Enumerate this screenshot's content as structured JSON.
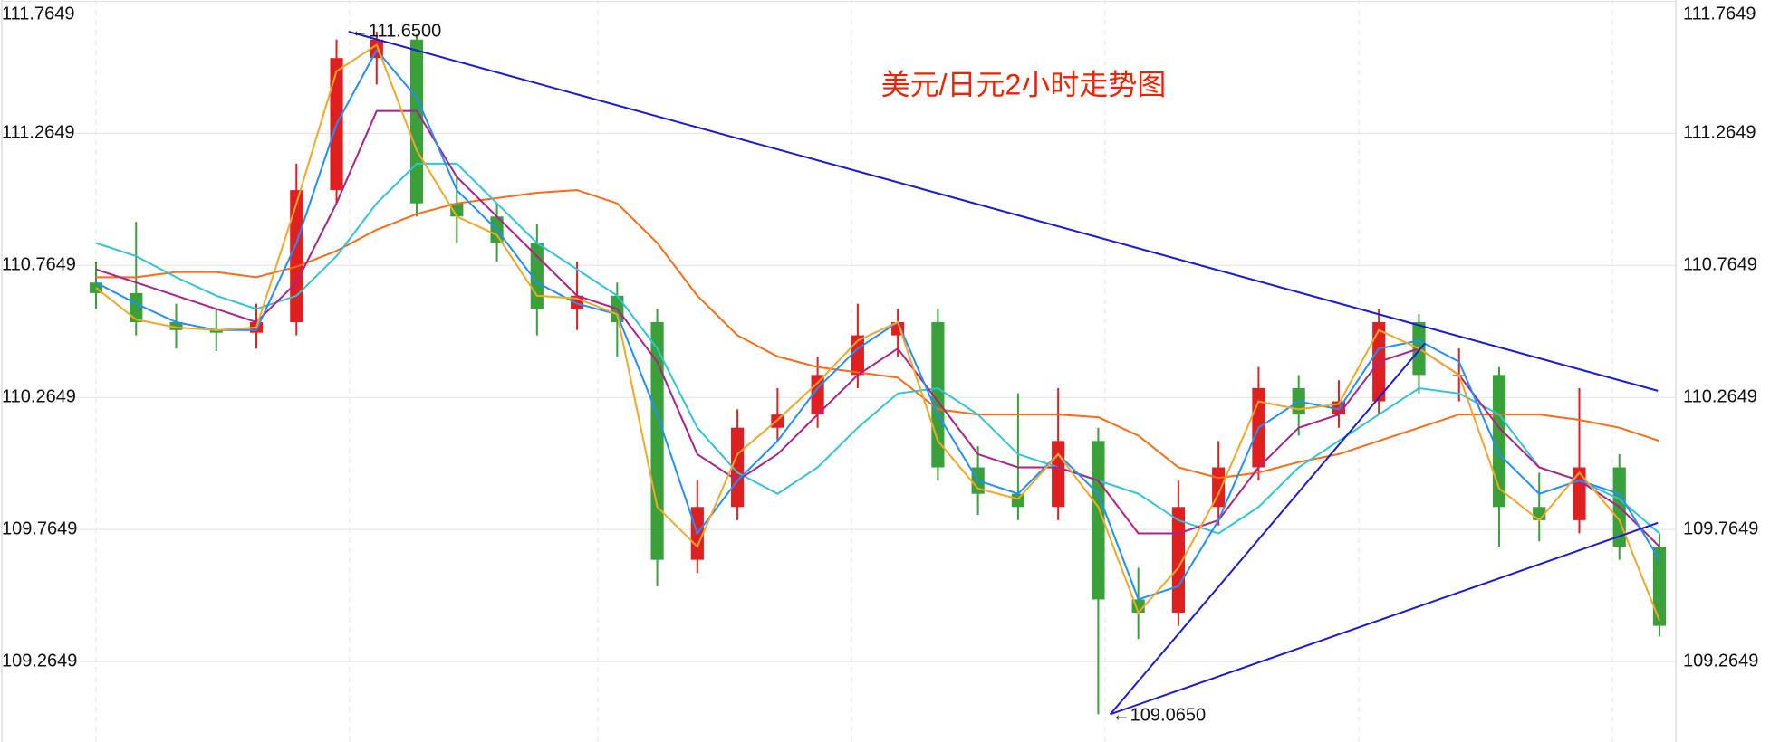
{
  "chart_data": {
    "type": "candlestick",
    "title": "美元/日元2小时走势图",
    "title_color": "#ee2200",
    "ylim": [
      108.96,
      111.77
    ],
    "yticks": [
      109.2649,
      109.7649,
      110.2649,
      110.7649,
      111.2649,
      111.7649
    ],
    "grid": true,
    "up_color": "#e02020",
    "down_color": "#3aa03a",
    "open": [
      110.7,
      110.66,
      110.55,
      110.52,
      110.51,
      110.55,
      111.05,
      111.55,
      111.62,
      111.0,
      110.95,
      110.85,
      110.6,
      110.65,
      110.55,
      109.65,
      109.85,
      110.15,
      110.2,
      110.35,
      110.5,
      110.55,
      110.0,
      109.9,
      109.85,
      110.1,
      109.5,
      109.45,
      109.85,
      110.0,
      110.3,
      110.2,
      110.25,
      110.55,
      110.35,
      110.35,
      109.85,
      109.8,
      110.0,
      109.7
    ],
    "high": [
      110.78,
      110.93,
      110.62,
      110.6,
      110.62,
      111.15,
      111.62,
      111.65,
      111.64,
      111.1,
      111.0,
      110.92,
      110.78,
      110.7,
      110.6,
      109.95,
      110.22,
      110.3,
      110.42,
      110.62,
      110.6,
      110.6,
      110.08,
      110.28,
      110.3,
      110.15,
      109.62,
      109.95,
      110.1,
      110.38,
      110.35,
      110.33,
      110.6,
      110.58,
      110.45,
      110.38,
      109.98,
      110.3,
      110.05,
      109.75
    ],
    "low": [
      110.6,
      110.5,
      110.45,
      110.44,
      110.45,
      110.5,
      111.0,
      111.45,
      110.95,
      110.85,
      110.78,
      110.5,
      110.52,
      110.42,
      109.55,
      109.6,
      109.8,
      110.1,
      110.15,
      110.3,
      110.42,
      109.95,
      109.82,
      109.8,
      109.8,
      109.065,
      109.35,
      109.4,
      109.78,
      109.95,
      110.12,
      110.15,
      110.2,
      110.28,
      110.25,
      109.7,
      109.72,
      109.75,
      109.65,
      109.36
    ],
    "close": [
      110.66,
      110.55,
      110.52,
      110.51,
      110.55,
      111.05,
      111.55,
      111.62,
      111.0,
      110.95,
      110.85,
      110.6,
      110.65,
      110.55,
      109.65,
      109.85,
      110.15,
      110.2,
      110.35,
      110.5,
      110.55,
      110.0,
      109.9,
      109.85,
      110.1,
      109.5,
      109.45,
      109.85,
      110.0,
      110.3,
      110.2,
      110.25,
      110.55,
      110.35,
      110.35,
      109.85,
      109.8,
      110.0,
      109.7,
      109.4
    ],
    "series": [
      {
        "color": "#ff6a10",
        "values": [
          110.72,
          110.72,
          110.74,
          110.74,
          110.72,
          110.76,
          110.82,
          110.9,
          110.96,
          111.0,
          111.02,
          111.04,
          111.05,
          111.0,
          110.85,
          110.65,
          110.5,
          110.42,
          110.38,
          110.36,
          110.34,
          110.22,
          110.2,
          110.2,
          110.2,
          110.19,
          110.12,
          110.0,
          109.96,
          109.98,
          110.02,
          110.05,
          110.1,
          110.15,
          110.2,
          110.2,
          110.2,
          110.18,
          110.15,
          110.1
        ]
      },
      {
        "color": "#2cc6d6",
        "values": [
          110.85,
          110.8,
          110.72,
          110.65,
          110.6,
          110.65,
          110.8,
          111.0,
          111.15,
          111.15,
          111.0,
          110.85,
          110.75,
          110.65,
          110.45,
          110.15,
          109.98,
          109.9,
          110.0,
          110.15,
          110.28,
          110.3,
          110.2,
          110.05,
          110.0,
          109.95,
          109.9,
          109.8,
          109.75,
          109.85,
          110.0,
          110.1,
          110.2,
          110.3,
          110.28,
          110.2,
          110.0,
          109.95,
          109.88,
          109.75
        ]
      },
      {
        "color": "#b0208a",
        "values": [
          110.75,
          110.7,
          110.65,
          110.6,
          110.55,
          110.7,
          111.0,
          111.35,
          111.35,
          111.1,
          110.95,
          110.8,
          110.65,
          110.6,
          110.4,
          110.05,
          109.95,
          110.05,
          110.2,
          110.35,
          110.45,
          110.25,
          110.05,
          110.0,
          110.0,
          109.95,
          109.75,
          109.75,
          109.8,
          110.0,
          110.15,
          110.2,
          110.4,
          110.45,
          110.35,
          110.15,
          110.0,
          109.95,
          109.85,
          109.7
        ]
      },
      {
        "color": "#1e8fff",
        "values": [
          110.7,
          110.62,
          110.55,
          110.52,
          110.52,
          110.85,
          111.3,
          111.58,
          111.4,
          111.05,
          110.9,
          110.7,
          110.62,
          110.58,
          110.2,
          109.75,
          109.95,
          110.1,
          110.3,
          110.45,
          110.55,
          110.2,
          109.95,
          109.9,
          110.05,
          109.9,
          109.5,
          109.55,
          109.8,
          110.15,
          110.25,
          110.22,
          110.45,
          110.48,
          110.4,
          110.05,
          109.9,
          109.95,
          109.9,
          109.65
        ]
      },
      {
        "color": "#f5a623",
        "values": [
          110.68,
          110.56,
          110.53,
          110.52,
          110.53,
          111.0,
          111.5,
          111.6,
          111.2,
          110.95,
          110.88,
          110.65,
          110.64,
          110.58,
          109.85,
          109.7,
          110.05,
          110.18,
          110.32,
          110.48,
          110.55,
          110.1,
          109.92,
          109.88,
          110.05,
          109.85,
          109.45,
          109.62,
          109.9,
          110.25,
          110.22,
          110.24,
          110.52,
          110.45,
          110.35,
          109.92,
          109.8,
          109.98,
          109.8,
          109.42
        ]
      }
    ],
    "trendlines": [
      {
        "color": "#1a1adb",
        "x": [
          6.3,
          38.96
        ],
        "values": [
          111.65,
          110.29
        ]
      },
      {
        "color": "#1a1adb",
        "x": [
          25.3,
          38.96
        ],
        "values": [
          109.065,
          109.79
        ]
      },
      {
        "color": "#1a1adb",
        "x": [
          25.3,
          33.15
        ],
        "values": [
          109.065,
          110.47
        ]
      }
    ],
    "annotations": [
      "←111.6500",
      "←109.0650"
    ]
  }
}
